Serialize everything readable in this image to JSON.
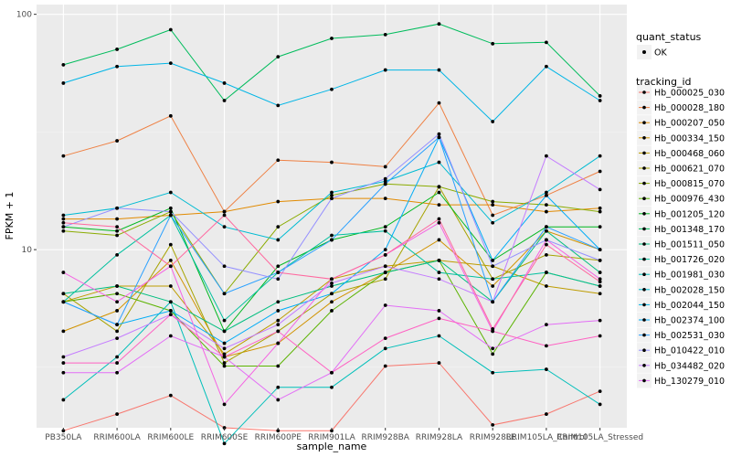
{
  "chart_data": {
    "type": "line",
    "title": "",
    "xlabel": "sample_name",
    "ylabel": "FPKM + 1",
    "yscale": "log10",
    "ylim": [
      1.75,
      110
    ],
    "yticks": [
      10,
      100
    ],
    "ytick_labels": [
      "10",
      "100"
    ],
    "grid": true,
    "legend_position": "right",
    "categories": [
      "PB350LA",
      "RRIM600LA",
      "RRIM600LE",
      "RRIM600SE",
      "RRIM600PE",
      "RRIM901LA",
      "RRIM928BA",
      "RRIM928LA",
      "RRIM928LE",
      "RRIM105LA_Control",
      "RRIM105LA_Stressed"
    ],
    "quant_legend": {
      "title": "quant_status",
      "entries": [
        "OK"
      ]
    },
    "tracking_legend_title": "tracking_id",
    "series": [
      {
        "name": "Hb_000025_030",
        "color": "#F8766D",
        "values": [
          1.7,
          2.0,
          2.4,
          1.75,
          1.7,
          1.7,
          3.2,
          3.3,
          1.8,
          2.0,
          2.5
        ]
      },
      {
        "name": "Hb_000028_180",
        "color": "#EE8043",
        "values": [
          25.0,
          29.0,
          37.0,
          14.5,
          24.0,
          23.5,
          22.5,
          42.0,
          14.0,
          17.0,
          21.5
        ]
      },
      {
        "name": "Hb_000207_050",
        "color": "#E18A00",
        "values": [
          13.5,
          13.5,
          14.0,
          14.5,
          16.0,
          16.5,
          16.5,
          15.5,
          15.5,
          14.5,
          15.0
        ]
      },
      {
        "name": "Hb_000334_150",
        "color": "#D19300",
        "values": [
          4.5,
          5.5,
          9.0,
          3.5,
          4.0,
          6.0,
          8.0,
          11.0,
          7.0,
          12.0,
          10.0
        ]
      },
      {
        "name": "Hb_000468_060",
        "color": "#BE9C00",
        "values": [
          6.0,
          7.0,
          7.0,
          3.6,
          5.0,
          7.5,
          8.5,
          9.0,
          8.5,
          7.0,
          6.5
        ]
      },
      {
        "name": "Hb_000621_070",
        "color": "#A7A300",
        "values": [
          6.5,
          4.5,
          10.5,
          3.3,
          4.5,
          6.5,
          7.5,
          18.5,
          7.5,
          9.5,
          9.0
        ]
      },
      {
        "name": "Hb_000815_070",
        "color": "#8AAB00",
        "values": [
          12.0,
          11.5,
          14.5,
          6.5,
          12.5,
          17.0,
          19.0,
          18.5,
          16.0,
          15.5,
          14.5
        ]
      },
      {
        "name": "Hb_000976_430",
        "color": "#5BB300",
        "values": [
          6.0,
          6.5,
          5.5,
          3.2,
          3.2,
          5.5,
          8.0,
          9.0,
          3.6,
          8.0,
          7.0
        ]
      },
      {
        "name": "Hb_001205_120",
        "color": "#00B81F",
        "values": [
          12.5,
          12.0,
          15.0,
          4.5,
          8.5,
          11.0,
          12.5,
          17.5,
          9.0,
          12.5,
          12.5
        ]
      },
      {
        "name": "Hb_001348_170",
        "color": "#00BC5C",
        "values": [
          61.0,
          71.0,
          86.0,
          43.0,
          66.0,
          79.0,
          82.0,
          91.0,
          75.0,
          76.0,
          45.0
        ]
      },
      {
        "name": "Hb_001511_050",
        "color": "#00BE7F",
        "values": [
          6.5,
          7.0,
          6.0,
          4.5,
          6.0,
          7.0,
          8.0,
          9.0,
          6.0,
          12.0,
          8.0
        ]
      },
      {
        "name": "Hb_001726_020",
        "color": "#00C09E",
        "values": [
          6.0,
          9.5,
          14.0,
          5.0,
          8.0,
          11.5,
          12.0,
          8.0,
          7.5,
          8.0,
          7.0
        ]
      },
      {
        "name": "Hb_001981_030",
        "color": "#00BFBA",
        "values": [
          2.3,
          3.5,
          6.0,
          1.5,
          2.6,
          2.6,
          3.8,
          4.3,
          3.0,
          3.1,
          2.2
        ]
      },
      {
        "name": "Hb_002028_150",
        "color": "#00BBD2",
        "values": [
          14.0,
          15.0,
          17.5,
          12.5,
          11.0,
          17.5,
          19.5,
          23.5,
          13.0,
          17.5,
          25.0
        ]
      },
      {
        "name": "Hb_002044_150",
        "color": "#00B5E6",
        "values": [
          51.0,
          60.0,
          62.0,
          51.0,
          41.0,
          48.0,
          58.0,
          58.0,
          35.0,
          60.0,
          43.0
        ]
      },
      {
        "name": "Hb_002374_100",
        "color": "#00ACF6",
        "values": [
          6.0,
          4.8,
          5.5,
          4.0,
          5.5,
          6.5,
          10.0,
          30.0,
          9.0,
          17.0,
          10.0
        ]
      },
      {
        "name": "Hb_002531_030",
        "color": "#2AA0FF",
        "values": [
          6.0,
          4.8,
          14.0,
          6.5,
          8.0,
          11.0,
          19.0,
          30.0,
          6.0,
          12.5,
          10.0
        ]
      },
      {
        "name": "Hb_010422_010",
        "color": "#9590FF",
        "values": [
          12.5,
          15.0,
          14.5,
          8.5,
          7.5,
          16.5,
          20.0,
          31.0,
          8.5,
          11.0,
          9.0
        ]
      },
      {
        "name": "Hb_034482_020",
        "color": "#C47CFF",
        "values": [
          3.5,
          4.2,
          5.3,
          3.8,
          4.8,
          7.2,
          8.5,
          7.5,
          6.0,
          25.0,
          18.0
        ]
      },
      {
        "name": "Hb_130279_010",
        "color": "#E36EF6",
        "values": [
          3.0,
          3.0,
          4.3,
          3.5,
          2.3,
          3.0,
          5.8,
          5.5,
          3.8,
          4.8,
          5.0
        ]
      },
      {
        "name": "",
        "color": "#F564E3",
        "values": [
          8.0,
          6.0,
          8.5,
          2.2,
          4.0,
          7.5,
          9.5,
          13.0,
          4.5,
          11.0,
          7.5
        ]
      },
      {
        "name": "",
        "color": "#FF61C3",
        "values": [
          3.3,
          3.3,
          5.3,
          3.5,
          4.5,
          3.0,
          4.2,
          5.1,
          4.5,
          3.9,
          4.3
        ]
      },
      {
        "name": "",
        "color": "#FF689F",
        "values": [
          13.0,
          12.5,
          8.5,
          14.0,
          8.0,
          7.5,
          9.5,
          13.5,
          4.6,
          10.5,
          7.3
        ]
      }
    ]
  }
}
